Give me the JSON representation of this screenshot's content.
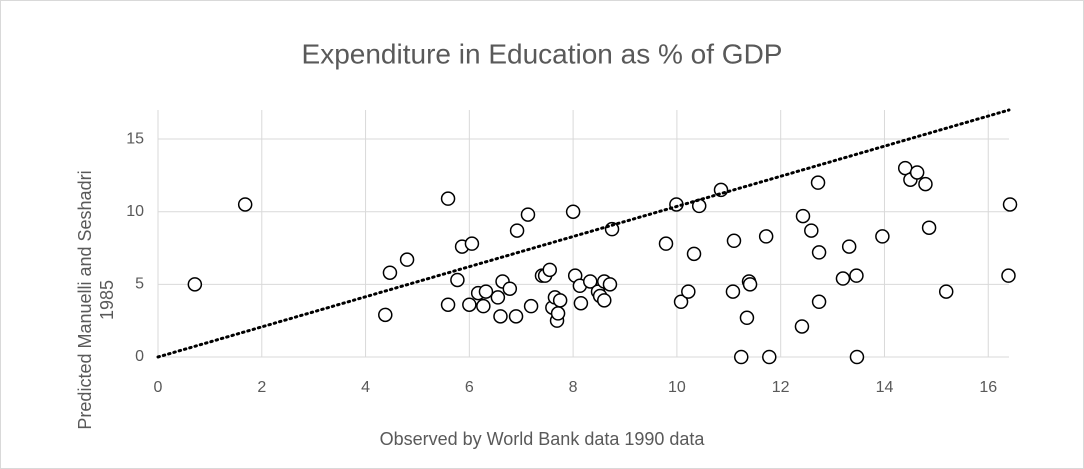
{
  "chart_data": {
    "type": "scatter",
    "title": "Expenditure in Education as % of GDP",
    "x_label": "Observed by World Bank data 1990 data",
    "y_label": [
      "Predicted Manuelli and Seshadri",
      "1985"
    ],
    "xlim": [
      0,
      16.4
    ],
    "ylim": [
      0,
      17
    ],
    "xticks": [
      0,
      2,
      4,
      6,
      8,
      10,
      12,
      14,
      16
    ],
    "yticks": [
      0,
      5,
      10,
      15
    ],
    "grid": true,
    "series": [
      {
        "type": "scatter",
        "color": "#000000",
        "x": [
          0.71,
          1.68,
          4.38,
          4.47,
          4.8,
          5.59,
          5.59,
          5.77,
          5.86,
          6.05,
          6.0,
          6.17,
          6.27,
          6.32,
          6.55,
          6.6,
          6.64,
          6.78,
          6.9,
          6.92,
          7.13,
          7.19,
          7.4,
          7.46,
          7.55,
          7.6,
          7.65,
          7.69,
          7.71,
          7.75,
          8.0,
          8.04,
          8.13,
          8.15,
          8.33,
          8.48,
          8.52,
          8.6,
          8.6,
          8.71,
          8.75,
          9.79,
          9.99,
          10.08,
          10.22,
          10.33,
          10.43,
          10.85,
          11.1,
          11.08,
          11.24,
          11.35,
          11.39,
          11.41,
          11.72,
          11.78,
          12.43,
          12.41,
          12.59,
          12.72,
          12.74,
          12.74,
          13.32,
          13.2,
          13.46,
          13.47,
          13.96,
          14.4,
          14.5,
          14.63,
          14.79,
          14.86,
          15.19,
          16.39,
          16.42
        ],
        "values": [
          5.0,
          10.5,
          2.9,
          5.8,
          6.7,
          10.9,
          3.6,
          5.3,
          7.6,
          7.8,
          3.6,
          4.4,
          3.5,
          4.5,
          4.1,
          2.8,
          5.2,
          4.7,
          2.8,
          8.7,
          9.8,
          3.5,
          5.6,
          5.6,
          6.0,
          3.4,
          4.1,
          2.5,
          3.0,
          3.9,
          10.0,
          5.6,
          4.9,
          3.7,
          5.2,
          4.5,
          4.2,
          5.2,
          3.9,
          5.0,
          8.8,
          7.8,
          10.5,
          3.8,
          4.5,
          7.1,
          10.4,
          11.5,
          8.0,
          4.5,
          0,
          2.7,
          5.2,
          5.0,
          8.3,
          0,
          9.7,
          2.1,
          8.7,
          12.0,
          7.2,
          3.8,
          7.6,
          5.4,
          5.6,
          0,
          8.3,
          13.0,
          12.2,
          12.7,
          11.9,
          8.9,
          4.5,
          5.6,
          10.5
        ]
      },
      {
        "type": "line",
        "color": "#000000",
        "x": [
          0,
          16.4
        ],
        "values": [
          0,
          17
        ]
      }
    ]
  }
}
